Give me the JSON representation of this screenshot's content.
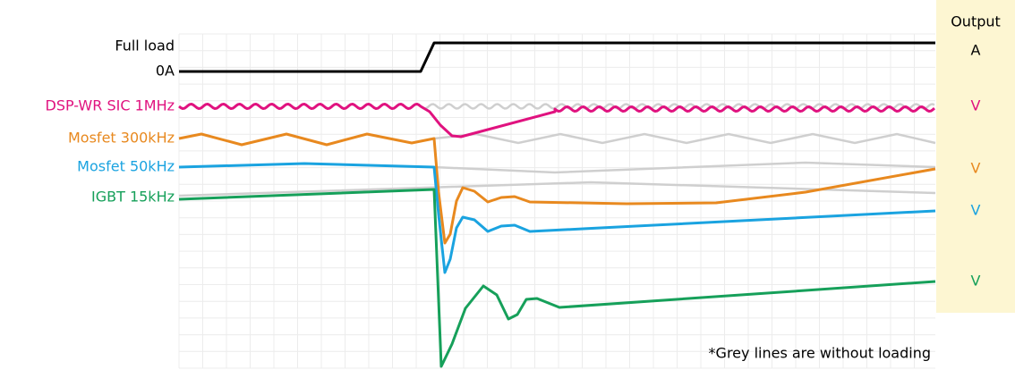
{
  "labels": {
    "full_load": "Full load",
    "zero": "0A",
    "dsp": "DSP-WR SIC 1MHz",
    "mosfet300": "Mosfet 300kHz",
    "mosfet50": "Mosfet 50kHz",
    "igbt": "IGBT 15kHz"
  },
  "output": {
    "title": "Output",
    "units": [
      "A",
      "V",
      "V",
      "V",
      "V"
    ]
  },
  "note": "*Grey lines are without loading"
}
